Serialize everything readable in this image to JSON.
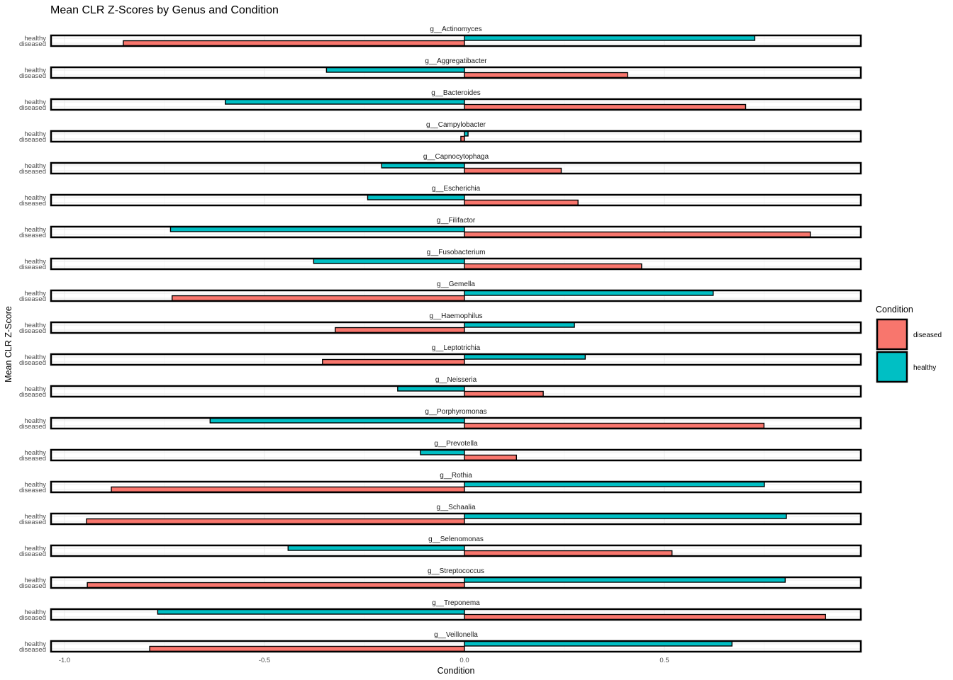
{
  "chart_data": {
    "type": "bar",
    "orientation": "horizontal",
    "title": "Mean CLR Z-Scores by Genus and Condition",
    "xlabel": "Condition",
    "ylabel": "Mean CLR Z-Score",
    "xlim": [
      -1.0,
      1.0
    ],
    "x_ticks": [
      -1.0,
      -0.5,
      0.0,
      0.5
    ],
    "x_tick_labels": [
      "-1.0",
      "-0.5",
      "0.0",
      "0.5"
    ],
    "grid": true,
    "legend": {
      "title": "Condition",
      "position": "right",
      "entries": [
        {
          "label": "diseased",
          "color": "#F8766D"
        },
        {
          "label": "healthy",
          "color": "#00BFC4"
        }
      ]
    },
    "categories": [
      "healthy",
      "diseased"
    ],
    "facets": [
      {
        "label": "g__Actinomyces",
        "values": {
          "healthy": 0.726,
          "diseased": -0.853
        }
      },
      {
        "label": "g__Aggregatibacter",
        "values": {
          "healthy": -0.345,
          "diseased": 0.408
        }
      },
      {
        "label": "g__Bacteroides",
        "values": {
          "healthy": -0.598,
          "diseased": 0.703
        }
      },
      {
        "label": "g__Campylobacter",
        "values": {
          "healthy": 0.009,
          "diseased": -0.009
        }
      },
      {
        "label": "g__Capnocytophaga",
        "values": {
          "healthy": -0.207,
          "diseased": 0.242
        }
      },
      {
        "label": "g__Escherichia",
        "values": {
          "healthy": -0.242,
          "diseased": 0.284
        }
      },
      {
        "label": "g__Filifactor",
        "values": {
          "healthy": -0.735,
          "diseased": 0.865
        }
      },
      {
        "label": "g__Fusobacterium",
        "values": {
          "healthy": -0.377,
          "diseased": 0.443
        }
      },
      {
        "label": "g__Gemella",
        "values": {
          "healthy": 0.622,
          "diseased": -0.731
        }
      },
      {
        "label": "g__Haemophilus",
        "values": {
          "healthy": 0.275,
          "diseased": -0.323
        }
      },
      {
        "label": "g__Leptotrichia",
        "values": {
          "healthy": 0.302,
          "diseased": -0.355
        }
      },
      {
        "label": "g__Neisseria",
        "values": {
          "healthy": -0.167,
          "diseased": 0.197
        }
      },
      {
        "label": "g__Porphyromonas",
        "values": {
          "healthy": -0.636,
          "diseased": 0.749
        }
      },
      {
        "label": "g__Prevotella",
        "values": {
          "healthy": -0.11,
          "diseased": 0.13
        }
      },
      {
        "label": "g__Rothia",
        "values": {
          "healthy": 0.75,
          "diseased": -0.883
        }
      },
      {
        "label": "g__Schaalia",
        "values": {
          "healthy": 0.805,
          "diseased": -0.945
        }
      },
      {
        "label": "g__Selenomonas",
        "values": {
          "healthy": -0.441,
          "diseased": 0.519
        }
      },
      {
        "label": "g__Streptococcus",
        "values": {
          "healthy": 0.802,
          "diseased": -0.943
        }
      },
      {
        "label": "g__Treponema",
        "values": {
          "healthy": -0.767,
          "diseased": 0.903
        }
      },
      {
        "label": "g__Veillonella",
        "values": {
          "healthy": 0.669,
          "diseased": -0.787
        }
      }
    ]
  }
}
